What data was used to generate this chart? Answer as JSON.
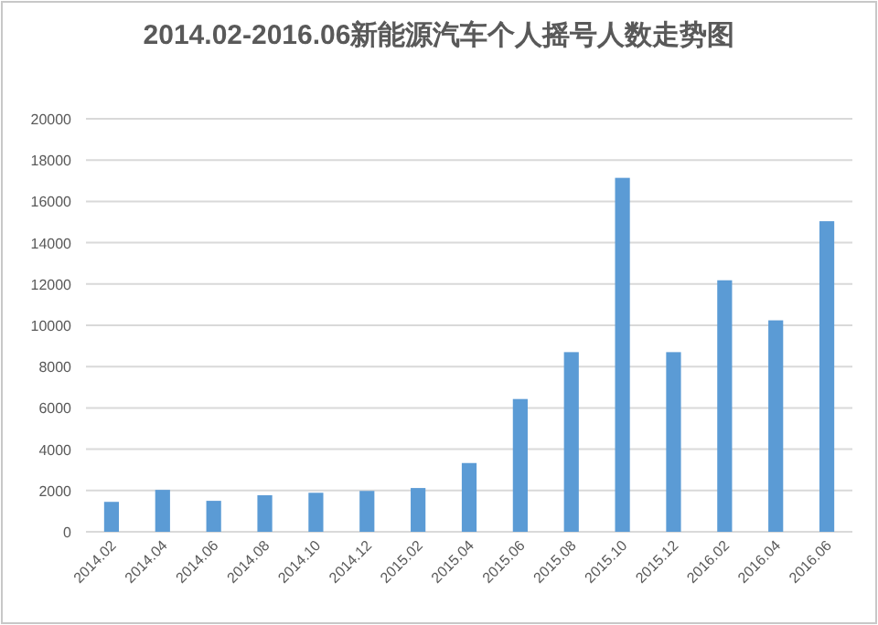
{
  "chart_data": {
    "type": "bar",
    "title": "2014.02-2016.06新能源汽车个人摇号人数走势图",
    "categories": [
      "2014.02",
      "2014.04",
      "2014.06",
      "2014.08",
      "2014.10",
      "2014.12",
      "2015.02",
      "2015.04",
      "2015.06",
      "2015.08",
      "2015.10",
      "2015.12",
      "2016.02",
      "2016.04",
      "2016.06"
    ],
    "values": [
      1450,
      2030,
      1500,
      1770,
      1890,
      1980,
      2120,
      3330,
      6430,
      8700,
      17140,
      8700,
      12180,
      10240,
      15040
    ],
    "color": "#5b9bd5",
    "ylim": [
      0,
      20000
    ],
    "yticks": [
      0,
      2000,
      4000,
      6000,
      8000,
      10000,
      12000,
      14000,
      16000,
      18000,
      20000
    ],
    "grid": "y"
  }
}
